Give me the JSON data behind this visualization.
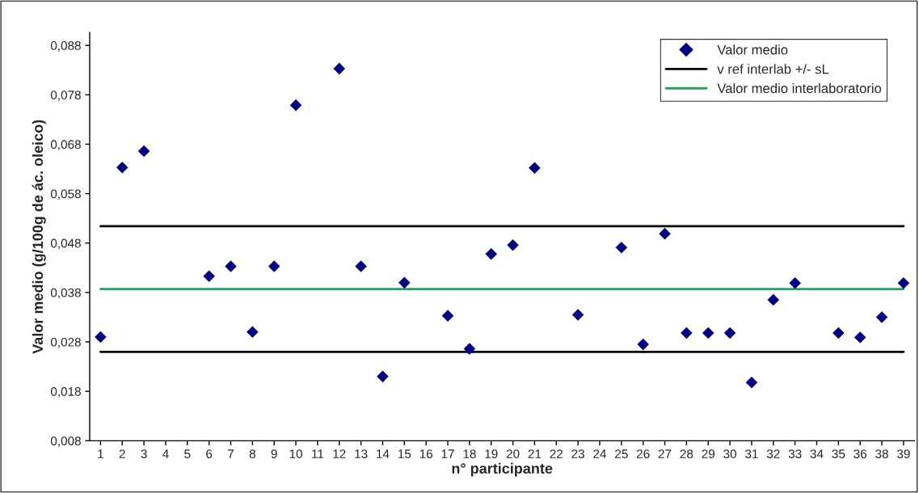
{
  "chart_data": {
    "type": "scatter",
    "xlabel": "n° participante",
    "ylabel": "Valor medio (g/100g de ác. oleico)",
    "categories": [
      "1",
      "2",
      "3",
      "4",
      "5",
      "6",
      "7",
      "8",
      "9",
      "10",
      "11",
      "12",
      "13",
      "14",
      "15",
      "16",
      "17",
      "18",
      "19",
      "20",
      "21",
      "22",
      "23",
      "24",
      "25",
      "26",
      "27",
      "28",
      "29",
      "30",
      "31",
      "32",
      "33",
      "34",
      "35",
      "36",
      "38",
      "39"
    ],
    "series": [
      {
        "name": "Valor medio",
        "color": "#000080",
        "values": [
          0.029,
          0.0633,
          0.0666,
          null,
          null,
          0.0413,
          0.0433,
          0.03,
          0.0433,
          0.0759,
          null,
          0.0833,
          0.0433,
          0.021,
          0.04,
          null,
          0.0333,
          0.0266,
          0.0458,
          0.0476,
          0.0632,
          null,
          0.0335,
          null,
          0.0471,
          0.0275,
          0.0499,
          0.0298,
          0.0298,
          0.0298,
          0.0198,
          0.0365,
          0.0399,
          null,
          0.0298,
          0.0289,
          0.033,
          0.0399
        ]
      }
    ],
    "marker": "diamond",
    "ylim": [
      0.008,
      0.0906
    ],
    "yticks": [
      {
        "value": 0.008,
        "label": "0,008"
      },
      {
        "value": 0.018,
        "label": "0,018"
      },
      {
        "value": 0.028,
        "label": "0,028"
      },
      {
        "value": 0.038,
        "label": "0,038"
      },
      {
        "value": 0.048,
        "label": "0,048"
      },
      {
        "value": 0.058,
        "label": "0,058"
      },
      {
        "value": 0.068,
        "label": "0,068"
      },
      {
        "value": 0.078,
        "label": "0,078"
      },
      {
        "value": 0.088,
        "label": "0,088"
      }
    ],
    "ref_lines": [
      {
        "axis": "y",
        "value": 0.0514,
        "label": "v ref interlab +/- sL",
        "color": "#000000"
      },
      {
        "axis": "y",
        "value": 0.026,
        "color": "#000000"
      },
      {
        "axis": "y",
        "value": 0.0387,
        "label": "Valor medio interlaboratorio",
        "color": "#339966"
      }
    ],
    "grid": false,
    "legend": "top right"
  }
}
